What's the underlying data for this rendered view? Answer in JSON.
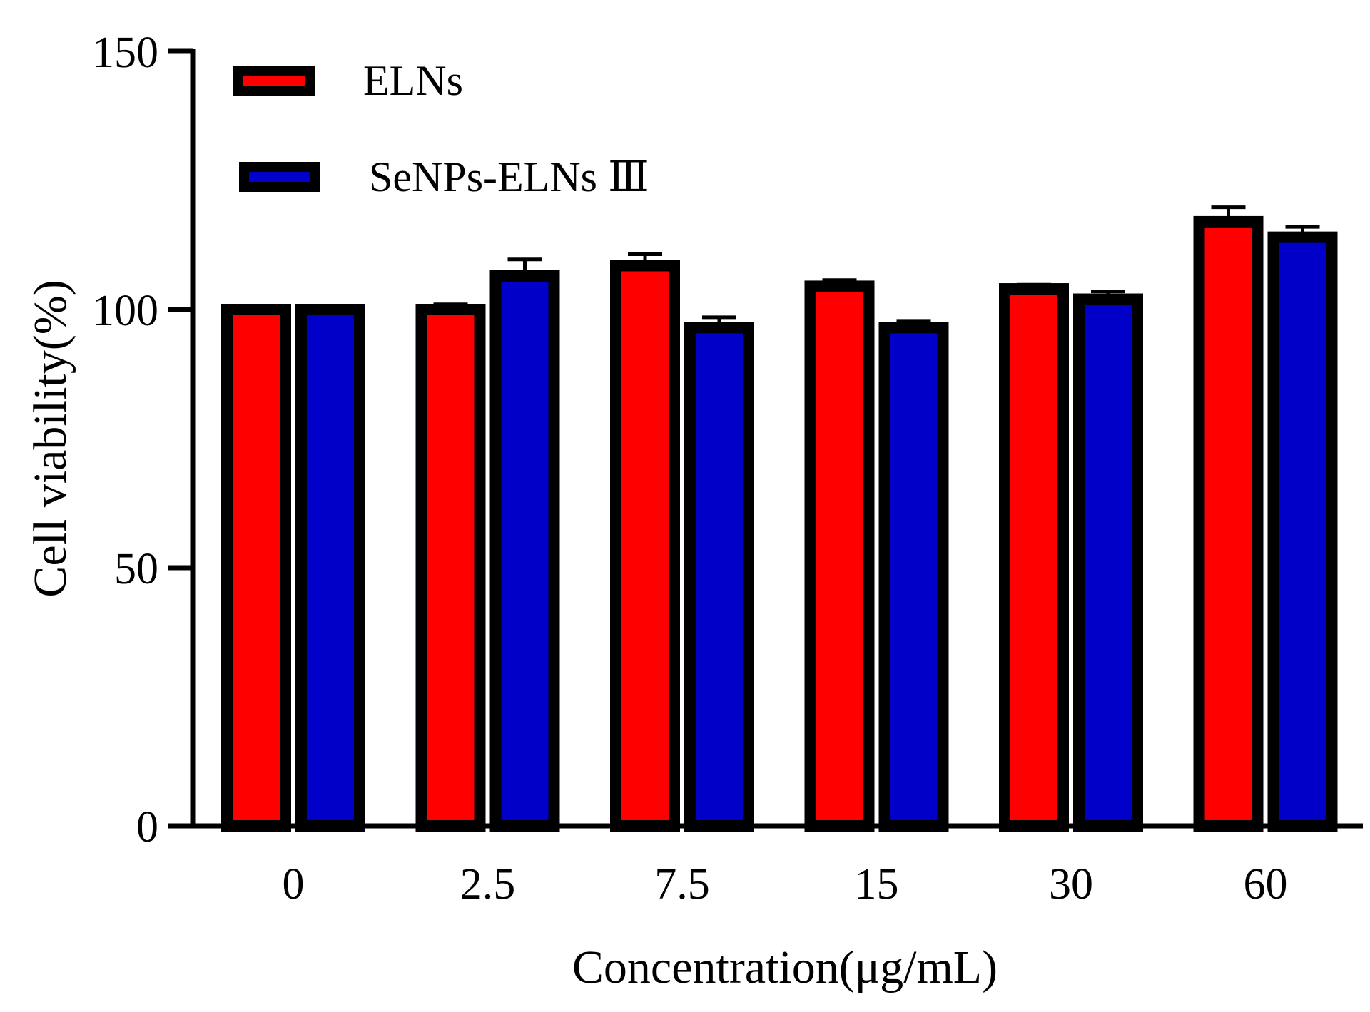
{
  "chart_data": {
    "type": "bar",
    "title": "",
    "xlabel": "Concentration(μg/mL)",
    "ylabel": "Cell viability(%)",
    "ylim": [
      0,
      150
    ],
    "yticks": [
      0,
      50,
      100,
      150
    ],
    "categories": [
      "0",
      "2.5",
      "7.5",
      "15",
      "30",
      "60"
    ],
    "legend_position": "top-left",
    "grid": false,
    "series": [
      {
        "name": "ELNs",
        "color": "#ff0000",
        "values": [
          100,
          100,
          108.5,
          104.5,
          104,
          117
        ],
        "errors": [
          0.3,
          1,
          2.2,
          1.2,
          0.8,
          2.8
        ]
      },
      {
        "name": "SeNPs-ELNs Ⅲ",
        "color": "#0000c8",
        "values": [
          100,
          106.5,
          96.5,
          96.5,
          102,
          114
        ],
        "errors": [
          0.6,
          3.2,
          2,
          1.3,
          1.5,
          2
        ]
      }
    ]
  }
}
